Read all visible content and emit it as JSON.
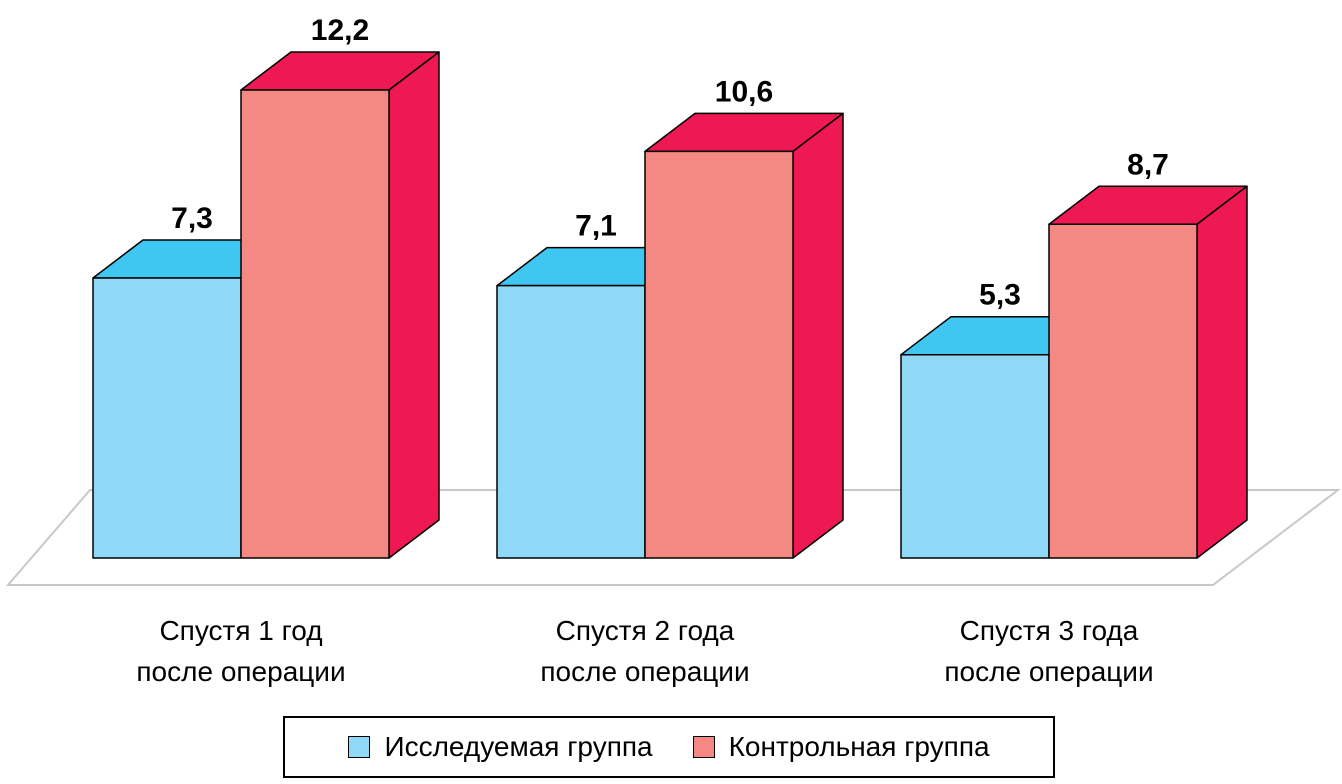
{
  "chart_data": {
    "type": "bar",
    "categories": [
      [
        "Спустя 1 год",
        "после операции"
      ],
      [
        "Спустя 2 года",
        "после операции"
      ],
      [
        "Спустя 3 года",
        "после операции"
      ]
    ],
    "series": [
      {
        "name": "Исследуемая группа",
        "values": [
          7.3,
          7.1,
          5.3
        ],
        "labels": [
          "7,3",
          "7,1",
          "5,3"
        ]
      },
      {
        "name": "Контрольная группа",
        "values": [
          12.2,
          10.6,
          8.7
        ],
        "labels": [
          "12,2",
          "10,6",
          "8,7"
        ]
      }
    ],
    "colors": {
      "series0_front": "#8fd8f6",
      "series0_top": "#3fc6f1",
      "series1_front": "#f48882",
      "series1_side": "#ee1852"
    },
    "ylim": [
      0,
      12.2
    ],
    "grid": false,
    "style": "3d",
    "legend": "bottom"
  }
}
